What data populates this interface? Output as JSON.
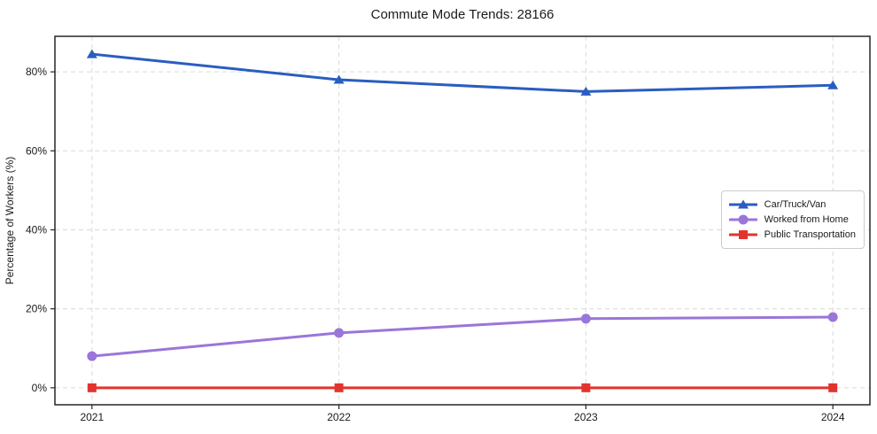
{
  "page": {
    "background_color": "#ffffff",
    "text_color": "#1a1a1a"
  },
  "chart_data": {
    "type": "line",
    "title": "Commute Mode Trends: 28166",
    "xlabel": "",
    "ylabel": "Percentage of Workers (%)",
    "x": [
      2021,
      2022,
      2023,
      2024
    ],
    "xticklabels": [
      "2021",
      "2022",
      "2023",
      "2024"
    ],
    "yticks": [
      0,
      20,
      40,
      60,
      80
    ],
    "yticklabels": [
      "0%",
      "20%",
      "40%",
      "60%",
      "80%"
    ],
    "xlim": [
      2020.85,
      2024.15
    ],
    "ylim": [
      -4.3,
      89
    ],
    "grid": true,
    "grid_style": "dashed",
    "grid_color": "#d9d9d9",
    "axis_color": "#262626",
    "legend_position": "center-right",
    "series": [
      {
        "name": "Car/Truck/Van",
        "marker": "triangle",
        "color": "#2a5dc0",
        "values": [
          84.5,
          78.0,
          75.0,
          76.6
        ]
      },
      {
        "name": "Worked from Home",
        "marker": "circle",
        "color": "#9a76d8",
        "values": [
          8.0,
          13.9,
          17.5,
          17.9
        ]
      },
      {
        "name": "Public Transportation",
        "marker": "square",
        "color": "#e1342f",
        "values": [
          0.0,
          0.0,
          0.0,
          0.0
        ]
      }
    ]
  }
}
